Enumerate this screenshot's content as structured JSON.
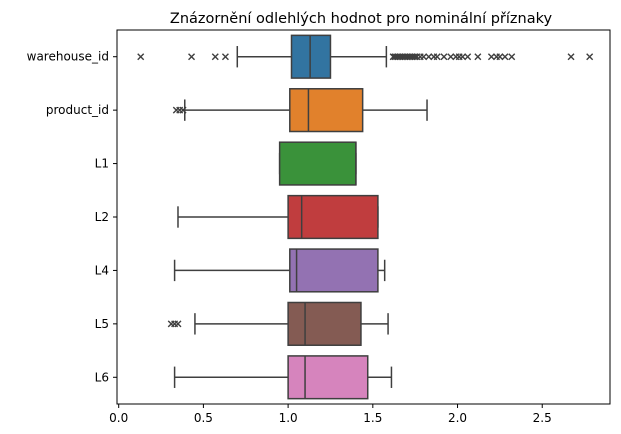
{
  "chart_data": {
    "type": "box",
    "orientation": "horizontal",
    "title": "Znázornění odlehlých hodnot pro nominální příznaky",
    "xlabel": "",
    "ylabel": "",
    "xlim": [
      -0.01,
      2.9
    ],
    "xticks": [
      0.0,
      0.5,
      1.0,
      1.5,
      2.0,
      2.5
    ],
    "xtick_labels": [
      "0.0",
      "0.5",
      "1.0",
      "1.5",
      "2.0",
      "2.5"
    ],
    "grid": false,
    "legend": "none",
    "categories": [
      "warehouse_id",
      "product_id",
      "L1",
      "L2",
      "L4",
      "L5",
      "L6"
    ],
    "boxes": [
      {
        "name": "warehouse_id",
        "color": "#3274a1",
        "whisker_low": 0.7,
        "q1": 1.02,
        "median": 1.13,
        "q3": 1.25,
        "whisker_high": 1.58,
        "outliers": [
          0.13,
          0.43,
          0.57,
          0.63,
          1.62,
          1.63,
          1.64,
          1.65,
          1.66,
          1.67,
          1.68,
          1.69,
          1.7,
          1.71,
          1.72,
          1.73,
          1.74,
          1.75,
          1.76,
          1.78,
          1.8,
          1.83,
          1.86,
          1.88,
          1.92,
          1.96,
          1.99,
          2.01,
          2.03,
          2.06,
          2.12,
          2.2,
          2.23,
          2.25,
          2.28,
          2.32,
          2.67,
          2.78
        ]
      },
      {
        "name": "product_id",
        "color": "#e1812c",
        "whisker_low": 0.39,
        "q1": 1.01,
        "median": 1.12,
        "q3": 1.44,
        "whisker_high": 1.82,
        "outliers": [
          0.34,
          0.36,
          0.38
        ]
      },
      {
        "name": "L1",
        "color": "#3a923a",
        "whisker_low": 0.95,
        "q1": 0.95,
        "median": 1.4,
        "q3": 1.4,
        "whisker_high": 1.4,
        "outliers": []
      },
      {
        "name": "L2",
        "color": "#c03d3e",
        "whisker_low": 0.35,
        "q1": 1.0,
        "median": 1.08,
        "q3": 1.53,
        "whisker_high": 1.53,
        "outliers": []
      },
      {
        "name": "L4",
        "color": "#9372b2",
        "whisker_low": 0.33,
        "q1": 1.01,
        "median": 1.05,
        "q3": 1.53,
        "whisker_high": 1.57,
        "outliers": []
      },
      {
        "name": "L5",
        "color": "#845b53",
        "whisker_low": 0.45,
        "q1": 1.0,
        "median": 1.1,
        "q3": 1.43,
        "whisker_high": 1.59,
        "outliers": [
          0.31,
          0.33,
          0.35
        ]
      },
      {
        "name": "L6",
        "color": "#d684bd",
        "whisker_low": 0.33,
        "q1": 1.0,
        "median": 1.1,
        "q3": 1.47,
        "whisker_high": 1.61,
        "outliers": []
      }
    ]
  }
}
